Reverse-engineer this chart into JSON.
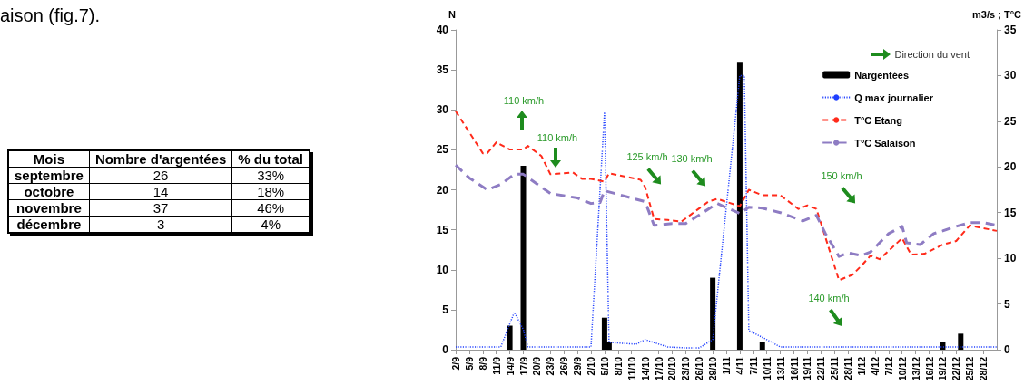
{
  "chart_data": [
    {
      "type": "other",
      "annotations": [
        "aison (fig.7)."
      ],
      "xlabel": "Mois",
      "data_labels": true,
      "categories": [
        "septembre",
        "octobre",
        "novembre",
        "décembre"
      ],
      "series": [
        {
          "name": "Nombre d'argentées",
          "values": [
            26,
            14,
            37,
            3
          ]
        },
        {
          "name": "% du total",
          "values": [
            33,
            18,
            46,
            4
          ],
          "value_labels": [
            "33%",
            "18%",
            "46%",
            "4%"
          ]
        }
      ]
    },
    {
      "type": "line",
      "ylabel": "N",
      "y2label": "m3/s ; T°C",
      "legend": "top right",
      "legend_title": "Direction du vent",
      "marker": "none",
      "grid": false,
      "xlim": [
        "--09-02",
        "--12-31"
      ],
      "xticks": [
        {
          "value": "--09-02",
          "label": "2/9"
        },
        {
          "value": "--09-05",
          "label": "5/9"
        },
        {
          "value": "--09-08",
          "label": "8/9"
        },
        {
          "value": "--09-11",
          "label": "11/9"
        },
        {
          "value": "--09-14",
          "label": "14/9"
        },
        {
          "value": "--09-17",
          "label": "17/9"
        },
        {
          "value": "--09-20",
          "label": "20/9"
        },
        {
          "value": "--09-23",
          "label": "23/9"
        },
        {
          "value": "--09-26",
          "label": "26/9"
        },
        {
          "value": "--09-29",
          "label": "29/9"
        },
        {
          "value": "--10-02",
          "label": "2/10"
        },
        {
          "value": "--10-05",
          "label": "5/10"
        },
        {
          "value": "--10-08",
          "label": "8/10"
        },
        {
          "value": "--10-11",
          "label": "11/10"
        },
        {
          "value": "--10-14",
          "label": "14/10"
        },
        {
          "value": "--10-17",
          "label": "17/10"
        },
        {
          "value": "--10-20",
          "label": "20/10"
        },
        {
          "value": "--10-23",
          "label": "23/10"
        },
        {
          "value": "--10-26",
          "label": "26/10"
        },
        {
          "value": "--10-29",
          "label": "29/10"
        },
        {
          "value": "--11-01",
          "label": "1/11"
        },
        {
          "value": "--11-04",
          "label": "4/11"
        },
        {
          "value": "--11-07",
          "label": "7/11"
        },
        {
          "value": "--11-10",
          "label": "10/11"
        },
        {
          "value": "--11-13",
          "label": "13/11"
        },
        {
          "value": "--11-16",
          "label": "16/11"
        },
        {
          "value": "--11-19",
          "label": "19/11"
        },
        {
          "value": "--11-22",
          "label": "22/11"
        },
        {
          "value": "--11-25",
          "label": "25/11"
        },
        {
          "value": "--11-28",
          "label": "28/11"
        },
        {
          "value": "--12-01",
          "label": "1/12"
        },
        {
          "value": "--12-04",
          "label": "4/12"
        },
        {
          "value": "--12-07",
          "label": "7/12"
        },
        {
          "value": "--12-10",
          "label": "10/12"
        },
        {
          "value": "--12-13",
          "label": "13/12"
        },
        {
          "value": "--12-16",
          "label": "16/12"
        },
        {
          "value": "--12-19",
          "label": "19/12"
        },
        {
          "value": "--12-22",
          "label": "22/12"
        },
        {
          "value": "--12-25",
          "label": "25/12"
        },
        {
          "value": "--12-28",
          "label": "28/12"
        }
      ],
      "ylim": [
        0,
        40
      ],
      "yticks": [
        0,
        5,
        10,
        15,
        20,
        25,
        30,
        35,
        40
      ],
      "y2lim": [
        0,
        35
      ],
      "y2ticks": [
        0,
        5,
        10,
        15,
        20,
        25,
        30,
        35
      ],
      "series": [
        {
          "name": "Nargentées",
          "type": "bar",
          "color": "#000000",
          "x": [
            "--09-14",
            "--09-17",
            "--10-05",
            "--10-06",
            "--10-29",
            "--11-04",
            "--11-09",
            "--12-19",
            "--12-23"
          ],
          "values": [
            3,
            23,
            4,
            1,
            9,
            36,
            1,
            1,
            2
          ]
        },
        {
          "name": "Q max journalier",
          "type": "line",
          "axis": "y2",
          "line_style": "dotted",
          "color": "#1f3fff",
          "x": [
            "--09-02",
            "--09-12",
            "--09-15",
            "--09-17",
            "--09-18",
            "--10-02",
            "--10-05",
            "--10-06",
            "--10-12",
            "--10-14",
            "--10-19",
            "--10-23",
            "--10-26",
            "--10-29",
            "--11-04",
            "--11-05",
            "--11-06",
            "--11-10",
            "--11-13",
            "--12-31"
          ],
          "values": [
            0.3,
            0.3,
            4.1,
            2.2,
            0.3,
            0.3,
            26,
            0.8,
            0.6,
            1.1,
            0.3,
            0.2,
            0.2,
            1.1,
            30,
            30,
            2.1,
            1.1,
            0.3,
            0.3
          ]
        },
        {
          "name": "T°C Etang",
          "type": "line",
          "axis": "y2",
          "line_style": "dashed",
          "color": "#ff2a1a",
          "x": [
            "--09-02",
            "--09-08",
            "--09-09",
            "--09-11",
            "--09-14",
            "--09-17",
            "--09-18",
            "--09-21",
            "--09-23",
            "--09-28",
            "--09-30",
            "--10-02",
            "--10-05",
            "--10-06",
            "--10-13",
            "--10-14",
            "--10-16",
            "--10-19",
            "--10-22",
            "--10-28",
            "--10-30",
            "--11-04",
            "--11-06",
            "--11-09",
            "--11-13",
            "--11-17",
            "--11-19",
            "--11-21",
            "--11-26",
            "--11-29",
            "--12-01",
            "--12-03",
            "--12-05",
            "--12-10",
            "--12-12",
            "--12-15",
            "--12-19",
            "--12-22",
            "--12-25",
            "--12-31"
          ],
          "values": [
            26.1,
            21.5,
            21.5,
            22.7,
            21.9,
            21.9,
            22.3,
            21.2,
            19.2,
            19.4,
            18.7,
            18.7,
            18.4,
            19.3,
            18.6,
            17.8,
            14.3,
            14.2,
            14,
            16.2,
            16.5,
            15.7,
            17.5,
            16.9,
            16.9,
            15.4,
            15.8,
            15.4,
            7.6,
            8.2,
            9.2,
            10.3,
            9.9,
            12.2,
            10.4,
            10.5,
            11.5,
            11.9,
            13.6,
            13
          ]
        },
        {
          "name": "T°C Salaison",
          "type": "line",
          "axis": "y2",
          "line_style": "dashed",
          "color": "#8e7cc3",
          "x": [
            "--09-02",
            "--09-05",
            "--09-09",
            "--09-12",
            "--09-15",
            "--09-17",
            "--09-21",
            "--09-23",
            "--09-29",
            "--10-02",
            "--10-04",
            "--10-05",
            "--10-14",
            "--10-16",
            "--10-20",
            "--10-23",
            "--10-30",
            "--11-04",
            "--11-06",
            "--11-09",
            "--11-13",
            "--11-18",
            "--11-21",
            "--11-23",
            "--11-26",
            "--11-28",
            "--12-01",
            "--12-03",
            "--12-07",
            "--12-10",
            "--12-11",
            "--12-14",
            "--12-17",
            "--12-19",
            "--12-22",
            "--12-25",
            "--12-28",
            "--12-31"
          ],
          "values": [
            20.2,
            18.8,
            17.5,
            18.1,
            19.2,
            19.2,
            17.8,
            17.1,
            16.6,
            16,
            16.1,
            17.4,
            16.2,
            13.6,
            13.8,
            13.8,
            16,
            14.9,
            15.6,
            15.5,
            15,
            14.1,
            14.7,
            12.7,
            10.2,
            10.6,
            10.3,
            10.7,
            12.7,
            13.5,
            11.7,
            11.5,
            12.7,
            13,
            13.5,
            13.9,
            13.9,
            13.6
          ]
        }
      ],
      "annotations": [
        "110 km/h",
        "110 km/h",
        "125 km/h",
        "130 km/h",
        "150 km/h",
        "140 km/h"
      ]
    }
  ]
}
